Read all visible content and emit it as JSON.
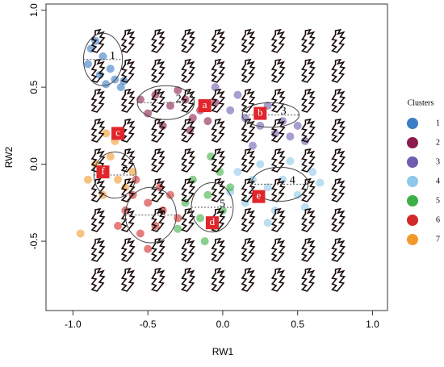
{
  "chart_data": {
    "type": "scatter",
    "xlabel": "RW1",
    "ylabel": "RW2",
    "xlim": [
      -1.18,
      1.1
    ],
    "ylim": [
      -0.95,
      1.04
    ],
    "xticks": [
      {
        "value": -1,
        "label": "-1.0"
      },
      {
        "value": -0.5,
        "label": "-0.5"
      },
      {
        "value": 0,
        "label": "0.0"
      },
      {
        "value": 0.5,
        "label": "0.5"
      },
      {
        "value": 1,
        "label": "1.0"
      }
    ],
    "yticks": [
      {
        "value": -0.5,
        "label": "-0.5"
      },
      {
        "value": 0,
        "label": "0.0"
      },
      {
        "value": 0.5,
        "label": "0.5"
      },
      {
        "value": 1,
        "label": "1.0"
      }
    ],
    "legend_title": "Clusters",
    "series": [
      {
        "name": "1",
        "color": "#3b7cc6",
        "x": [
          -0.85,
          -0.8,
          -0.75,
          -0.72,
          -0.9,
          -0.78,
          -0.68,
          -0.82,
          -0.66,
          -0.88
        ],
        "y": [
          0.8,
          0.7,
          0.62,
          0.55,
          0.65,
          0.52,
          0.5,
          0.58,
          0.54,
          0.75
        ],
        "ellipse": {
          "cx": -0.8,
          "cy": 0.68,
          "rx": 0.13,
          "ry": 0.17
        }
      },
      {
        "name": "2",
        "color": "#8b1c4d",
        "x": [
          -0.45,
          -0.35,
          -0.25,
          -0.15,
          -0.2,
          -0.3,
          -0.5,
          -0.1,
          -0.4,
          -0.05,
          -0.55,
          -0.22
        ],
        "y": [
          0.45,
          0.38,
          0.42,
          0.35,
          0.3,
          0.48,
          0.33,
          0.28,
          0.25,
          0.4,
          0.42,
          0.22
        ],
        "ellipse": {
          "cx": -0.38,
          "cy": 0.4,
          "rx": 0.19,
          "ry": 0.11
        }
      },
      {
        "name": "3",
        "color": "#6f5db0",
        "x": [
          0.05,
          0.15,
          0.25,
          0.35,
          0.45,
          0.55,
          0.2,
          0.3,
          0.4,
          0.1,
          -0.05,
          0.5
        ],
        "y": [
          0.35,
          0.3,
          0.25,
          0.2,
          0.18,
          0.15,
          0.12,
          0.38,
          0.28,
          0.45,
          0.5,
          0.25
        ],
        "ellipse": {
          "cx": 0.32,
          "cy": 0.32,
          "rx": 0.19,
          "ry": 0.08
        }
      },
      {
        "name": "4",
        "color": "#8ec8ea",
        "x": [
          0.1,
          0.2,
          0.3,
          0.4,
          0.5,
          0.6,
          0.15,
          0.35,
          0.45,
          0.25,
          0.55,
          0.05,
          0.65,
          0.3
        ],
        "y": [
          -0.05,
          -0.1,
          -0.15,
          -0.1,
          -0.2,
          -0.05,
          -0.25,
          -0.3,
          0.02,
          0.0,
          -0.28,
          -0.18,
          -0.12,
          -0.38
        ],
        "ellipse": {
          "cx": 0.38,
          "cy": -0.13,
          "rx": 0.19,
          "ry": 0.11
        }
      },
      {
        "name": "5",
        "color": "#3cb046",
        "x": [
          -0.2,
          -0.1,
          0.0,
          -0.05,
          -0.15,
          -0.25,
          0.05,
          -0.12,
          -0.02,
          -0.3,
          -0.08
        ],
        "y": [
          -0.1,
          -0.2,
          -0.3,
          -0.4,
          -0.35,
          -0.25,
          -0.15,
          -0.5,
          -0.05,
          -0.42,
          0.05
        ],
        "ellipse": {
          "cx": -0.07,
          "cy": -0.28,
          "rx": 0.14,
          "ry": 0.16
        }
      },
      {
        "name": "6",
        "color": "#d3292a",
        "x": [
          -0.6,
          -0.5,
          -0.4,
          -0.45,
          -0.55,
          -0.35,
          -0.65,
          -0.3,
          -0.5,
          -0.42,
          -0.7,
          -0.58
        ],
        "y": [
          -0.2,
          -0.25,
          -0.3,
          -0.4,
          -0.45,
          -0.2,
          -0.3,
          -0.35,
          -0.55,
          -0.15,
          -0.4,
          -0.1
        ],
        "ellipse": {
          "cx": -0.48,
          "cy": -0.33,
          "rx": 0.17,
          "ry": 0.18
        }
      },
      {
        "name": "7",
        "color": "#f3992b",
        "x": [
          -0.85,
          -0.75,
          -0.7,
          -0.65,
          -0.8,
          -0.72,
          -0.6,
          -0.9,
          -0.95,
          -0.78
        ],
        "y": [
          0.0,
          0.05,
          -0.1,
          -0.15,
          -0.2,
          0.15,
          -0.05,
          -0.1,
          -0.45,
          0.2
        ],
        "ellipse": {
          "cx": -0.72,
          "cy": -0.07,
          "rx": 0.14,
          "ry": 0.15
        }
      }
    ],
    "annotations": [
      {
        "label": "a",
        "x": -0.12,
        "y": 0.38
      },
      {
        "label": "b",
        "x": 0.25,
        "y": 0.33
      },
      {
        "label": "c",
        "x": -0.7,
        "y": 0.2
      },
      {
        "label": "d",
        "x": -0.07,
        "y": -0.38
      },
      {
        "label": "e",
        "x": 0.24,
        "y": -0.21
      },
      {
        "label": "f",
        "x": -0.8,
        "y": -0.05
      }
    ]
  }
}
